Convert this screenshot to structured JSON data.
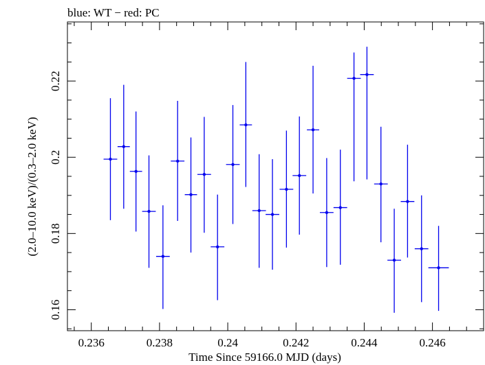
{
  "chart_data": {
    "type": "scatter",
    "title": "blue: WT − red: PC",
    "xlabel": "Time Since 59166.0 MJD (days)",
    "ylabel": "(2.0–10.0 keV)/(0.3–2.0 keV)",
    "xlim": [
      0.2353,
      0.2475
    ],
    "ylim": [
      0.1545,
      0.2355
    ],
    "x_ticks": [
      0.236,
      0.238,
      0.24,
      0.242,
      0.244,
      0.246
    ],
    "x_tick_labels": [
      "0.236",
      "0.238",
      "0.24",
      "0.242",
      "0.244",
      "0.246"
    ],
    "y_ticks": [
      0.16,
      0.18,
      0.2,
      0.22
    ],
    "y_tick_labels": [
      "0.16",
      "0.18",
      "0.2",
      "0.22"
    ],
    "grid": false,
    "series": [
      {
        "color": "#0000ee",
        "points": [
          {
            "x": 0.23656,
            "xerr": 0.0002,
            "y": 0.1995,
            "ylo": 0.1835,
            "yhi": 0.2155
          },
          {
            "x": 0.23695,
            "xerr": 0.00018,
            "y": 0.2028,
            "ylo": 0.1865,
            "yhi": 0.219
          },
          {
            "x": 0.23731,
            "xerr": 0.00018,
            "y": 0.1963,
            "ylo": 0.1805,
            "yhi": 0.212
          },
          {
            "x": 0.23769,
            "xerr": 0.0002,
            "y": 0.1858,
            "ylo": 0.171,
            "yhi": 0.2005
          },
          {
            "x": 0.2381,
            "xerr": 0.0002,
            "y": 0.174,
            "ylo": 0.1602,
            "yhi": 0.1874
          },
          {
            "x": 0.23853,
            "xerr": 0.0002,
            "y": 0.199,
            "ylo": 0.1833,
            "yhi": 0.2148
          },
          {
            "x": 0.23892,
            "xerr": 0.00018,
            "y": 0.1902,
            "ylo": 0.175,
            "yhi": 0.2052
          },
          {
            "x": 0.23931,
            "xerr": 0.0002,
            "y": 0.1955,
            "ylo": 0.1802,
            "yhi": 0.2106
          },
          {
            "x": 0.2397,
            "xerr": 0.0002,
            "y": 0.1765,
            "ylo": 0.1625,
            "yhi": 0.1902
          },
          {
            "x": 0.24015,
            "xerr": 0.0002,
            "y": 0.1981,
            "ylo": 0.1825,
            "yhi": 0.2137
          },
          {
            "x": 0.24053,
            "xerr": 0.00018,
            "y": 0.2085,
            "ylo": 0.1922,
            "yhi": 0.225
          },
          {
            "x": 0.24092,
            "xerr": 0.0002,
            "y": 0.186,
            "ylo": 0.171,
            "yhi": 0.2008
          },
          {
            "x": 0.24131,
            "xerr": 0.0002,
            "y": 0.185,
            "ylo": 0.1705,
            "yhi": 0.1995
          },
          {
            "x": 0.24172,
            "xerr": 0.0002,
            "y": 0.1916,
            "ylo": 0.1763,
            "yhi": 0.207
          },
          {
            "x": 0.2421,
            "xerr": 0.0002,
            "y": 0.1952,
            "ylo": 0.1797,
            "yhi": 0.2107
          },
          {
            "x": 0.2425,
            "xerr": 0.00018,
            "y": 0.2072,
            "ylo": 0.1905,
            "yhi": 0.224
          },
          {
            "x": 0.2429,
            "xerr": 0.0002,
            "y": 0.1855,
            "ylo": 0.1712,
            "yhi": 0.1998
          },
          {
            "x": 0.2433,
            "xerr": 0.0002,
            "y": 0.1868,
            "ylo": 0.1718,
            "yhi": 0.202
          },
          {
            "x": 0.2437,
            "xerr": 0.0002,
            "y": 0.2207,
            "ylo": 0.1937,
            "yhi": 0.2275
          },
          {
            "x": 0.24408,
            "xerr": 0.0002,
            "y": 0.2217,
            "ylo": 0.1942,
            "yhi": 0.229
          },
          {
            "x": 0.24449,
            "xerr": 0.0002,
            "y": 0.193,
            "ylo": 0.1777,
            "yhi": 0.208
          },
          {
            "x": 0.24488,
            "xerr": 0.0002,
            "y": 0.173,
            "ylo": 0.1592,
            "yhi": 0.1865
          },
          {
            "x": 0.24527,
            "xerr": 0.0002,
            "y": 0.1884,
            "ylo": 0.1737,
            "yhi": 0.2033
          },
          {
            "x": 0.24568,
            "xerr": 0.0002,
            "y": 0.176,
            "ylo": 0.162,
            "yhi": 0.19
          },
          {
            "x": 0.24618,
            "xerr": 0.0003,
            "y": 0.171,
            "ylo": 0.1597,
            "yhi": 0.182
          }
        ]
      }
    ]
  }
}
